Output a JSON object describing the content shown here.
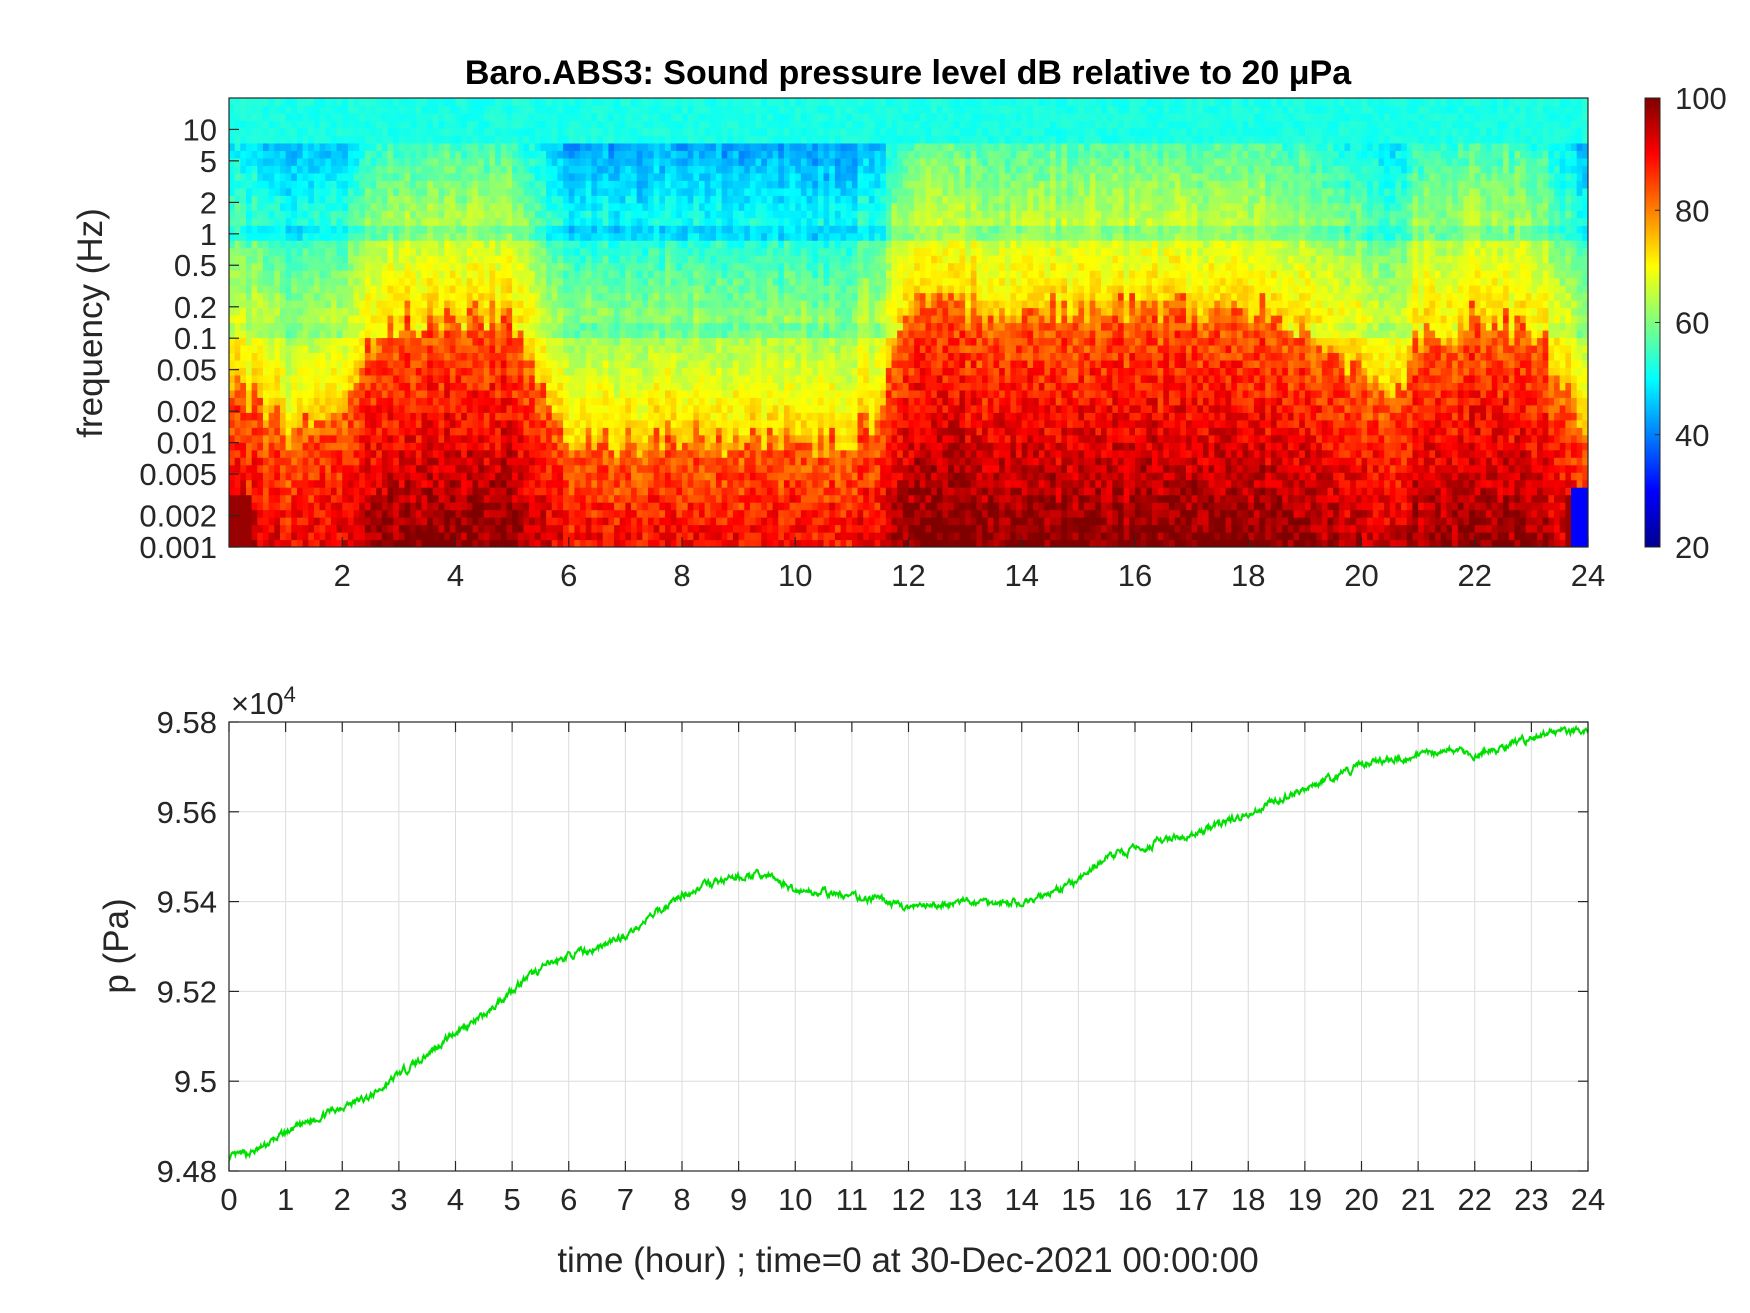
{
  "chart_data": [
    {
      "type": "heatmap",
      "title": "Baro.ABS3: Sound pressure level dB relative to 20 μPa",
      "ylabel": "frequency (Hz)",
      "xlabel": "",
      "xlim": [
        0,
        24
      ],
      "ylim": [
        0.001,
        20
      ],
      "y_scale": "log",
      "x_ticks": [
        2,
        4,
        6,
        8,
        10,
        12,
        14,
        16,
        18,
        20,
        22,
        24
      ],
      "y_ticks": [
        {
          "value": 10,
          "label": "10"
        },
        {
          "value": 5,
          "label": "5"
        },
        {
          "value": 2,
          "label": "2"
        },
        {
          "value": 1,
          "label": "1"
        },
        {
          "value": 0.5,
          "label": "0.5"
        },
        {
          "value": 0.2,
          "label": "0.2"
        },
        {
          "value": 0.1,
          "label": "0.1"
        },
        {
          "value": 0.05,
          "label": "0.05"
        },
        {
          "value": 0.02,
          "label": "0.02"
        },
        {
          "value": 0.01,
          "label": "0.01"
        },
        {
          "value": 0.005,
          "label": "0.005"
        },
        {
          "value": 0.002,
          "label": "0.002"
        },
        {
          "value": 0.001,
          "label": "0.001"
        }
      ],
      "colorbar": {
        "colormap": "jet",
        "range": [
          20,
          100
        ],
        "ticks": [
          20,
          40,
          60,
          80,
          100
        ]
      },
      "activity_profile": {
        "hours": [
          0,
          1,
          2,
          2.5,
          3,
          4,
          5,
          5.5,
          6,
          7,
          8,
          9,
          10,
          11,
          11.5,
          12,
          13,
          14,
          15,
          16,
          17,
          18,
          19,
          20,
          20.5,
          21,
          22,
          23,
          23.5,
          24
        ],
        "warm_top_frequency_hz": [
          0.05,
          0.012,
          0.02,
          0.1,
          0.15,
          0.18,
          0.15,
          0.04,
          0.012,
          0.01,
          0.012,
          0.01,
          0.01,
          0.012,
          0.02,
          0.2,
          0.2,
          0.18,
          0.2,
          0.18,
          0.2,
          0.2,
          0.15,
          0.05,
          0.02,
          0.1,
          0.15,
          0.12,
          0.05,
          0.01
        ]
      }
    },
    {
      "type": "line",
      "xlabel": "time (hour) ; time=0 at 30-Dec-2021 00:00:00",
      "ylabel": "p (Pa)",
      "exponent_label": "×10",
      "exponent_power": "4",
      "xlim": [
        0,
        24
      ],
      "ylim": [
        9.48,
        9.58
      ],
      "y_scale_factor": 10000,
      "grid": true,
      "line_color": "#00e000",
      "x_ticks": [
        0,
        1,
        2,
        3,
        4,
        5,
        6,
        7,
        8,
        9,
        10,
        11,
        12,
        13,
        14,
        15,
        16,
        17,
        18,
        19,
        20,
        21,
        22,
        23,
        24
      ],
      "y_ticks": [
        "9.48",
        "9.5",
        "9.52",
        "9.54",
        "9.56",
        "9.58"
      ],
      "series": [
        {
          "x": [
            0,
            0.5,
            1,
            1.5,
            2,
            2.5,
            3,
            3.5,
            4,
            4.5,
            5,
            5.5,
            6,
            6.5,
            7,
            7.5,
            8,
            8.5,
            9,
            9.5,
            10,
            10.5,
            11,
            11.5,
            12,
            12.5,
            13,
            13.5,
            14,
            14.5,
            15,
            15.5,
            16,
            16.5,
            17,
            17.5,
            18,
            18.5,
            19,
            19.5,
            20,
            20.5,
            21,
            21.5,
            22,
            22.5,
            23,
            23.5,
            24
          ],
          "y": [
            9.4828,
            9.4845,
            9.4885,
            9.4915,
            9.4945,
            9.4965,
            9.5015,
            9.506,
            9.511,
            9.5145,
            9.5205,
            9.525,
            9.528,
            9.5295,
            9.5325,
            9.537,
            9.5415,
            9.544,
            9.5455,
            9.546,
            9.5425,
            9.542,
            9.541,
            9.5405,
            9.5385,
            9.539,
            9.54,
            9.54,
            9.5395,
            9.542,
            9.5445,
            9.55,
            9.5515,
            9.5535,
            9.5545,
            9.5575,
            9.5595,
            9.5625,
            9.5655,
            9.5675,
            9.5705,
            9.5715,
            9.5725,
            9.574,
            9.5725,
            9.5745,
            9.5765,
            9.578,
            9.5775
          ]
        }
      ]
    }
  ]
}
